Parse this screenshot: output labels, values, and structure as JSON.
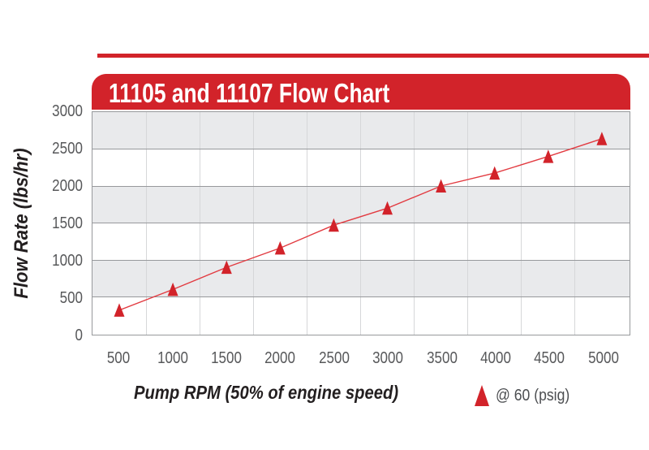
{
  "header": {
    "title": "11105 and 11107 Flow Chart"
  },
  "colors": {
    "accent_red": "#d2232a",
    "line_red": "#e23b41",
    "band_gray": "#e9eaec",
    "band_white": "#ffffff",
    "grid_vertical": "#d6d7d9",
    "grid_horizontal": "#97999c",
    "tick_text": "#57585a",
    "axis_title_text": "#231f20",
    "legend_text": "#4d4f52",
    "banner_text": "#ffffff"
  },
  "chart_data": {
    "type": "line",
    "title": "11105 and 11107 Flow Chart",
    "xlabel": "Pump RPM (50% of engine speed)",
    "ylabel": "Flow Rate (lbs/hr)",
    "xaxis_type": "category",
    "x": [
      500,
      1000,
      1500,
      2000,
      2500,
      3000,
      3500,
      4000,
      4500,
      5000
    ],
    "series": [
      {
        "name": "@ 60 (psig)",
        "marker": "triangle-up",
        "color": "#d2232a",
        "values": [
          320,
          600,
          900,
          1160,
          1470,
          1700,
          2000,
          2175,
          2400,
          2640
        ]
      }
    ],
    "ylim": [
      0,
      3000
    ],
    "yticks": [
      0,
      500,
      1000,
      1500,
      2000,
      2500,
      3000
    ],
    "grid": {
      "vertical": true,
      "horizontal": true,
      "bands": "alternating gray/white rows every 500"
    },
    "legend": {
      "label": "@ 60 (psig)",
      "position": "below-chart-right"
    }
  }
}
